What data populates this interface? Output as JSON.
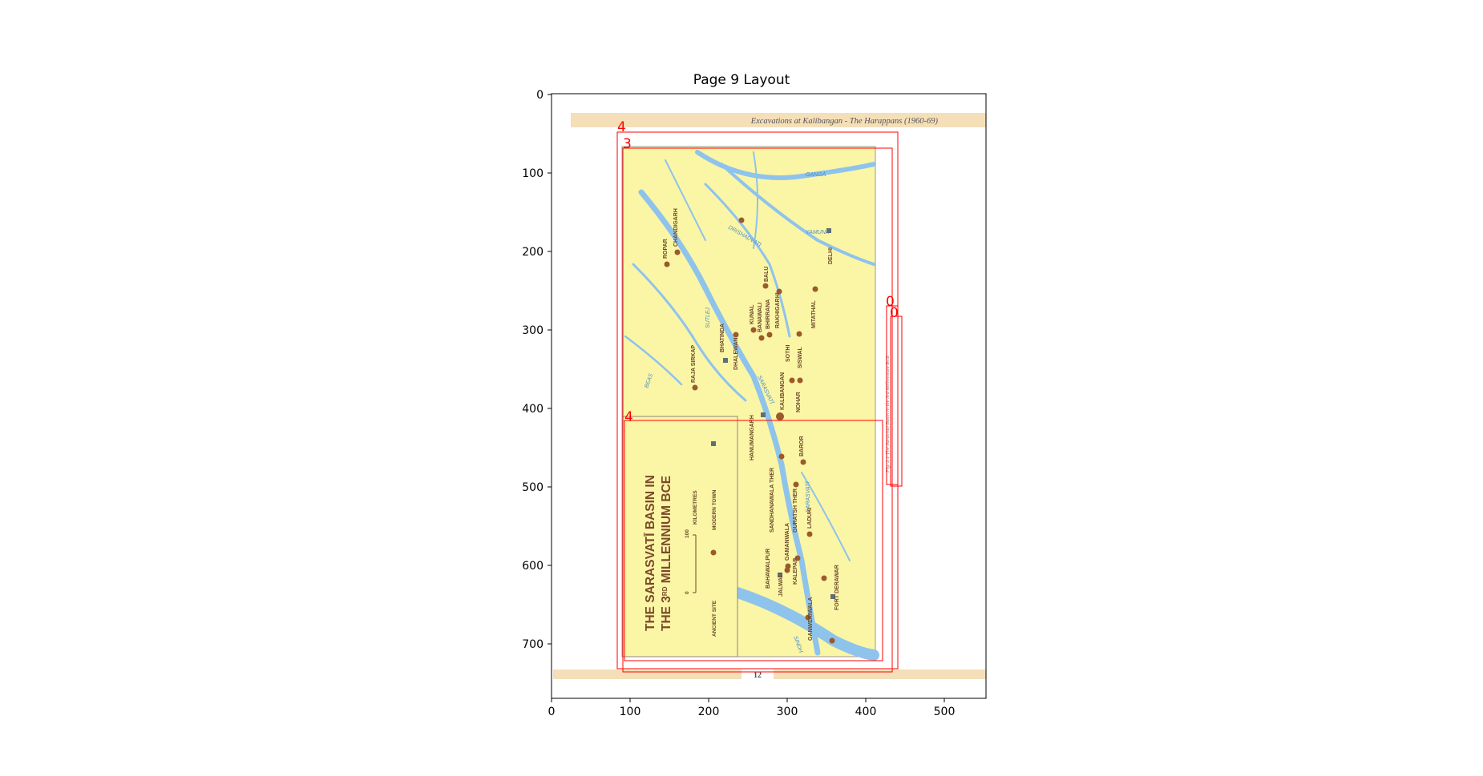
{
  "figure": {
    "title": "Page 9 Layout",
    "x_ticks": [
      "0",
      "100",
      "200",
      "300",
      "400",
      "500"
    ],
    "y_ticks": [
      "0",
      "100",
      "200",
      "300",
      "400",
      "500",
      "600",
      "700"
    ]
  },
  "page": {
    "header": "Excavations at Kalibangan - The Harappans (1960-69)",
    "page_number": "12",
    "side_caption": "Fig. 2.1 The Sarasvati Basin in the 3rd Millennium BCE",
    "colors": {
      "header_band": "#f5dfb8",
      "map_fill": "#fbf5a6",
      "river": "#8ec3ec",
      "site": "#9a5a2a",
      "box": "#ff0000"
    }
  },
  "map": {
    "rivers": [
      "GANGĀ",
      "YAMUNĀ",
      "DRISHADVATI",
      "SUTLEJ",
      "BEAS",
      "SARASVATĪ",
      "SARASVATĪ",
      "SINDH"
    ],
    "places": [
      "CHANDIGARH",
      "ROPAR",
      "DELHI",
      "BALU",
      "KUNAL",
      "BANAWALI",
      "BHIRRANA",
      "RAKHIGARHI",
      "MITATHAL",
      "BHATINDA",
      "DHALEWAN",
      "SOTHI",
      "SISWAL",
      "RAJA SIRKAP",
      "KALIBANGAN",
      "NOHAR",
      "HANUMANGARH",
      "BAROR",
      "SANDHANAWALA THER",
      "GURATSH THER",
      "GAMANWALA",
      "LADUKI",
      "BAHAWALPUR",
      "JALWALI",
      "KALEPAR",
      "FORT DERAWAR",
      "GANWERIWALA"
    ],
    "legend": {
      "title_line1": "THE SARASVATĪ BASIN IN",
      "title_line2_pre": "THE 3",
      "title_line2_sup": "RD",
      "title_line2_post": " MILLENNIUM BCE",
      "scale_zero": "0",
      "scale_max": "100",
      "scale_unit": "KILOMETRES",
      "ancient_site": "ANCIENT SITE",
      "modern_town": "MODERN TOWN"
    }
  },
  "boxes": [
    {
      "label": "4"
    },
    {
      "label": "3"
    },
    {
      "label": "4"
    },
    {
      "label": "0"
    },
    {
      "label": "0"
    }
  ]
}
